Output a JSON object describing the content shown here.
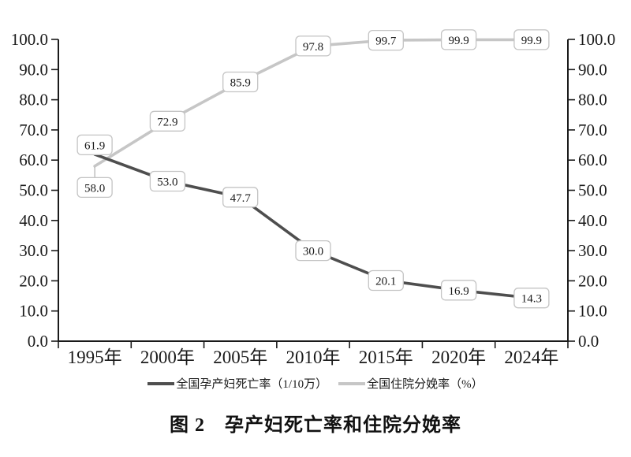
{
  "chart_data": {
    "type": "line",
    "title": "图 2　孕产妇死亡率和住院分娩率",
    "categories": [
      "1995年",
      "2000年",
      "2005年",
      "2010年",
      "2015年",
      "2020年",
      "2024年"
    ],
    "series": [
      {
        "name": "全国孕产妇死亡率（1/10万）",
        "values": [
          61.9,
          53.0,
          47.7,
          30.0,
          20.1,
          16.9,
          14.3
        ],
        "labels": [
          "61.9",
          "53.0",
          "47.7",
          "30.0",
          "20.1",
          "16.9",
          "14.3"
        ],
        "color": "#4e4e4e"
      },
      {
        "name": "全国住院分娩率（%）",
        "values": [
          58.0,
          72.9,
          85.9,
          97.8,
          99.7,
          99.9,
          99.9
        ],
        "labels": [
          "58.0",
          "72.9",
          "85.9",
          "97.8",
          "99.7",
          "99.9",
          "99.9"
        ],
        "color": "#c6c6c6"
      }
    ],
    "y_axis_left": {
      "min": 0,
      "max": 100,
      "step": 10,
      "ticks": [
        "0.0",
        "10.0",
        "20.0",
        "30.0",
        "40.0",
        "50.0",
        "60.0",
        "70.0",
        "80.0",
        "90.0",
        "100.0"
      ]
    },
    "y_axis_right": {
      "min": 0,
      "max": 100,
      "step": 10,
      "ticks": [
        "0.0",
        "10.0",
        "20.0",
        "30.0",
        "40.0",
        "50.0",
        "60.0",
        "70.0",
        "80.0",
        "90.0",
        "100.0"
      ]
    },
    "grid": false,
    "legend_position": "bottom",
    "axis_color": "#1a1a1a",
    "label_box": {
      "fill": "#ffffff",
      "border": "#c4c4c4",
      "text_color": "#222222"
    }
  }
}
